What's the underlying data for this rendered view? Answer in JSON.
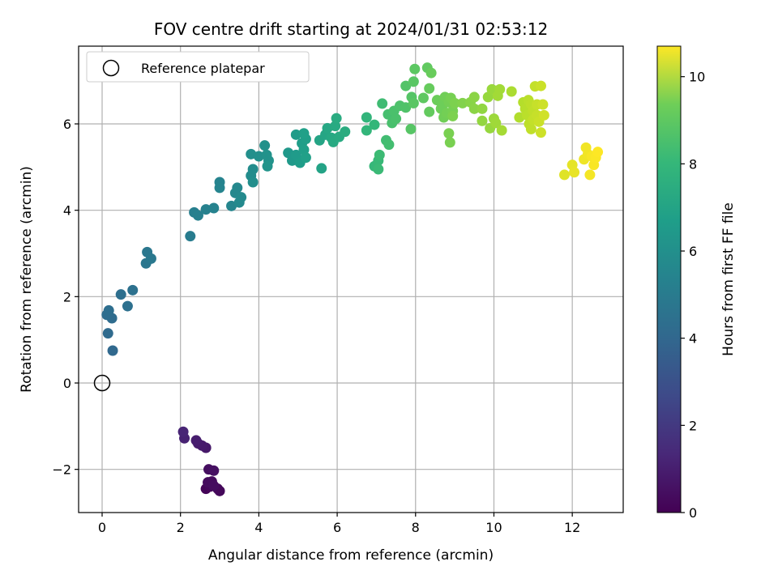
{
  "chart_data": {
    "type": "scatter",
    "title": "FOV centre drift starting at 2024/01/31 02:53:12",
    "xlabel": "Angular distance from reference (arcmin)",
    "ylabel": "Rotation from reference (arcmin)",
    "xlim": [
      -0.6,
      13.3
    ],
    "ylim": [
      -3.0,
      7.8
    ],
    "xticks": [
      0,
      2,
      4,
      6,
      8,
      10,
      12
    ],
    "yticks": [
      -2,
      0,
      2,
      4,
      6
    ],
    "grid": true,
    "legend": {
      "position": "top-left",
      "entries": [
        "Reference platepar"
      ]
    },
    "reference_point": {
      "x": 0,
      "y": 0
    },
    "colorbar": {
      "label": "Hours from first FF file",
      "colormap": "viridis",
      "range": [
        0,
        10.7
      ],
      "ticks": [
        0,
        2,
        4,
        6,
        8,
        10
      ]
    },
    "points": [
      {
        "x": 2.65,
        "y": -2.45,
        "h": 0.1
      },
      {
        "x": 2.75,
        "y": -2.4,
        "h": 0.15
      },
      {
        "x": 2.95,
        "y": -2.45,
        "h": 0.2
      },
      {
        "x": 3.0,
        "y": -2.5,
        "h": 0.2
      },
      {
        "x": 2.7,
        "y": -2.3,
        "h": 0.3
      },
      {
        "x": 2.8,
        "y": -2.28,
        "h": 0.3
      },
      {
        "x": 2.85,
        "y": -2.38,
        "h": 0.35
      },
      {
        "x": 2.72,
        "y": -2.0,
        "h": 0.4
      },
      {
        "x": 2.85,
        "y": -2.03,
        "h": 0.45
      },
      {
        "x": 2.65,
        "y": -1.5,
        "h": 0.7
      },
      {
        "x": 2.55,
        "y": -1.45,
        "h": 0.75
      },
      {
        "x": 2.45,
        "y": -1.4,
        "h": 0.8
      },
      {
        "x": 2.4,
        "y": -1.33,
        "h": 0.85
      },
      {
        "x": 2.1,
        "y": -1.28,
        "h": 1.0
      },
      {
        "x": 2.07,
        "y": -1.13,
        "h": 1.1
      },
      {
        "x": 0.27,
        "y": 0.75,
        "h": 3.6
      },
      {
        "x": 0.15,
        "y": 1.15,
        "h": 3.7
      },
      {
        "x": 0.25,
        "y": 1.5,
        "h": 3.75
      },
      {
        "x": 0.12,
        "y": 1.58,
        "h": 3.8
      },
      {
        "x": 0.17,
        "y": 1.68,
        "h": 3.85
      },
      {
        "x": 0.48,
        "y": 2.05,
        "h": 3.9
      },
      {
        "x": 0.65,
        "y": 1.78,
        "h": 3.95
      },
      {
        "x": 0.78,
        "y": 2.15,
        "h": 4.0
      },
      {
        "x": 1.12,
        "y": 2.77,
        "h": 4.2
      },
      {
        "x": 1.15,
        "y": 3.03,
        "h": 4.25
      },
      {
        "x": 1.25,
        "y": 2.88,
        "h": 4.3
      },
      {
        "x": 2.25,
        "y": 3.4,
        "h": 4.5
      },
      {
        "x": 2.35,
        "y": 3.95,
        "h": 4.6
      },
      {
        "x": 2.45,
        "y": 3.88,
        "h": 4.65
      },
      {
        "x": 2.65,
        "y": 4.02,
        "h": 4.7
      },
      {
        "x": 2.85,
        "y": 4.05,
        "h": 4.75
      },
      {
        "x": 3.0,
        "y": 4.65,
        "h": 4.8
      },
      {
        "x": 3.0,
        "y": 4.52,
        "h": 4.85
      },
      {
        "x": 3.3,
        "y": 4.1,
        "h": 4.9
      },
      {
        "x": 3.4,
        "y": 4.4,
        "h": 5.0
      },
      {
        "x": 3.45,
        "y": 4.52,
        "h": 5.0
      },
      {
        "x": 3.5,
        "y": 4.18,
        "h": 5.05
      },
      {
        "x": 3.55,
        "y": 4.3,
        "h": 5.1
      },
      {
        "x": 3.85,
        "y": 4.95,
        "h": 5.2
      },
      {
        "x": 3.8,
        "y": 4.8,
        "h": 5.2
      },
      {
        "x": 3.85,
        "y": 4.65,
        "h": 5.25
      },
      {
        "x": 3.8,
        "y": 5.3,
        "h": 5.3
      },
      {
        "x": 4.0,
        "y": 5.25,
        "h": 5.35
      },
      {
        "x": 4.15,
        "y": 5.5,
        "h": 5.4
      },
      {
        "x": 4.2,
        "y": 5.28,
        "h": 5.45
      },
      {
        "x": 4.25,
        "y": 5.15,
        "h": 5.45
      },
      {
        "x": 4.22,
        "y": 5.02,
        "h": 5.5
      },
      {
        "x": 4.75,
        "y": 5.33,
        "h": 5.7
      },
      {
        "x": 4.85,
        "y": 5.15,
        "h": 5.75
      },
      {
        "x": 4.95,
        "y": 5.28,
        "h": 5.8
      },
      {
        "x": 4.95,
        "y": 5.75,
        "h": 5.85
      },
      {
        "x": 5.05,
        "y": 5.1,
        "h": 5.9
      },
      {
        "x": 5.1,
        "y": 5.55,
        "h": 5.95
      },
      {
        "x": 5.15,
        "y": 5.4,
        "h": 6.0
      },
      {
        "x": 5.2,
        "y": 5.65,
        "h": 6.0
      },
      {
        "x": 5.15,
        "y": 5.78,
        "h": 6.05
      },
      {
        "x": 5.2,
        "y": 5.22,
        "h": 6.05
      },
      {
        "x": 5.6,
        "y": 4.97,
        "h": 6.2
      },
      {
        "x": 5.55,
        "y": 5.62,
        "h": 6.25
      },
      {
        "x": 5.7,
        "y": 5.75,
        "h": 6.3
      },
      {
        "x": 5.75,
        "y": 5.9,
        "h": 6.35
      },
      {
        "x": 5.85,
        "y": 5.68,
        "h": 6.4
      },
      {
        "x": 5.9,
        "y": 5.58,
        "h": 6.45
      },
      {
        "x": 5.95,
        "y": 5.95,
        "h": 6.5
      },
      {
        "x": 6.05,
        "y": 5.7,
        "h": 6.5
      },
      {
        "x": 5.98,
        "y": 6.13,
        "h": 6.55
      },
      {
        "x": 6.2,
        "y": 5.82,
        "h": 6.6
      },
      {
        "x": 6.75,
        "y": 6.15,
        "h": 7.0
      },
      {
        "x": 6.75,
        "y": 5.85,
        "h": 7.05
      },
      {
        "x": 6.95,
        "y": 5.98,
        "h": 7.1
      },
      {
        "x": 6.95,
        "y": 5.02,
        "h": 7.15
      },
      {
        "x": 7.05,
        "y": 5.15,
        "h": 7.2
      },
      {
        "x": 7.05,
        "y": 4.95,
        "h": 7.25
      },
      {
        "x": 7.08,
        "y": 5.28,
        "h": 7.3
      },
      {
        "x": 7.15,
        "y": 6.47,
        "h": 7.35
      },
      {
        "x": 7.25,
        "y": 5.62,
        "h": 7.4
      },
      {
        "x": 7.32,
        "y": 5.52,
        "h": 7.45
      },
      {
        "x": 7.3,
        "y": 6.22,
        "h": 7.5
      },
      {
        "x": 7.4,
        "y": 6.02,
        "h": 7.55
      },
      {
        "x": 7.45,
        "y": 6.3,
        "h": 7.6
      },
      {
        "x": 7.5,
        "y": 6.12,
        "h": 7.6
      },
      {
        "x": 7.6,
        "y": 6.42,
        "h": 7.65
      },
      {
        "x": 7.75,
        "y": 6.38,
        "h": 7.7
      },
      {
        "x": 7.75,
        "y": 6.88,
        "h": 7.75
      },
      {
        "x": 7.9,
        "y": 6.62,
        "h": 7.8
      },
      {
        "x": 7.88,
        "y": 5.88,
        "h": 7.85
      },
      {
        "x": 7.95,
        "y": 6.48,
        "h": 7.9
      },
      {
        "x": 7.95,
        "y": 6.98,
        "h": 7.9
      },
      {
        "x": 7.98,
        "y": 7.27,
        "h": 7.95
      },
      {
        "x": 8.2,
        "y": 6.6,
        "h": 8.0
      },
      {
        "x": 8.3,
        "y": 7.3,
        "h": 8.05
      },
      {
        "x": 8.35,
        "y": 6.28,
        "h": 8.1
      },
      {
        "x": 8.35,
        "y": 6.82,
        "h": 8.15
      },
      {
        "x": 8.4,
        "y": 7.18,
        "h": 8.2
      },
      {
        "x": 8.55,
        "y": 6.55,
        "h": 8.25
      },
      {
        "x": 8.65,
        "y": 6.35,
        "h": 8.3
      },
      {
        "x": 8.7,
        "y": 6.45,
        "h": 8.3
      },
      {
        "x": 8.72,
        "y": 6.15,
        "h": 8.35
      },
      {
        "x": 8.75,
        "y": 6.62,
        "h": 8.35
      },
      {
        "x": 8.8,
        "y": 6.25,
        "h": 8.4
      },
      {
        "x": 8.85,
        "y": 6.5,
        "h": 8.4
      },
      {
        "x": 8.9,
        "y": 6.6,
        "h": 8.45
      },
      {
        "x": 8.95,
        "y": 6.3,
        "h": 8.45
      },
      {
        "x": 8.85,
        "y": 5.78,
        "h": 8.5
      },
      {
        "x": 8.88,
        "y": 5.57,
        "h": 8.5
      },
      {
        "x": 8.95,
        "y": 6.18,
        "h": 8.55
      },
      {
        "x": 9.0,
        "y": 6.48,
        "h": 8.55
      },
      {
        "x": 9.2,
        "y": 6.48,
        "h": 8.65
      },
      {
        "x": 9.4,
        "y": 6.5,
        "h": 8.75
      },
      {
        "x": 9.5,
        "y": 6.35,
        "h": 8.8
      },
      {
        "x": 9.5,
        "y": 6.62,
        "h": 8.8
      },
      {
        "x": 9.7,
        "y": 6.35,
        "h": 8.9
      },
      {
        "x": 9.7,
        "y": 6.07,
        "h": 8.95
      },
      {
        "x": 9.85,
        "y": 6.62,
        "h": 9.0
      },
      {
        "x": 9.9,
        "y": 5.9,
        "h": 9.0
      },
      {
        "x": 9.95,
        "y": 6.8,
        "h": 9.05
      },
      {
        "x": 10.0,
        "y": 6.12,
        "h": 9.1
      },
      {
        "x": 10.05,
        "y": 6.02,
        "h": 9.15
      },
      {
        "x": 10.1,
        "y": 6.65,
        "h": 9.2
      },
      {
        "x": 10.15,
        "y": 6.8,
        "h": 9.2
      },
      {
        "x": 10.2,
        "y": 5.85,
        "h": 9.25
      },
      {
        "x": 10.45,
        "y": 6.75,
        "h": 9.35
      },
      {
        "x": 10.65,
        "y": 6.15,
        "h": 9.45
      },
      {
        "x": 10.75,
        "y": 6.5,
        "h": 9.5
      },
      {
        "x": 10.8,
        "y": 6.35,
        "h": 9.55
      },
      {
        "x": 10.85,
        "y": 6.2,
        "h": 9.6
      },
      {
        "x": 10.88,
        "y": 6.55,
        "h": 9.6
      },
      {
        "x": 10.9,
        "y": 6.0,
        "h": 9.65
      },
      {
        "x": 10.95,
        "y": 6.45,
        "h": 9.65
      },
      {
        "x": 10.95,
        "y": 5.88,
        "h": 9.7
      },
      {
        "x": 11.0,
        "y": 6.3,
        "h": 9.7
      },
      {
        "x": 11.0,
        "y": 6.1,
        "h": 9.75
      },
      {
        "x": 11.05,
        "y": 6.87,
        "h": 9.75
      },
      {
        "x": 11.1,
        "y": 6.45,
        "h": 9.8
      },
      {
        "x": 11.1,
        "y": 6.2,
        "h": 9.8
      },
      {
        "x": 11.15,
        "y": 6.05,
        "h": 9.85
      },
      {
        "x": 11.2,
        "y": 6.88,
        "h": 9.85
      },
      {
        "x": 11.2,
        "y": 5.8,
        "h": 9.9
      },
      {
        "x": 11.25,
        "y": 6.45,
        "h": 9.9
      },
      {
        "x": 11.28,
        "y": 6.2,
        "h": 9.95
      },
      {
        "x": 11.8,
        "y": 4.82,
        "h": 10.2
      },
      {
        "x": 12.0,
        "y": 5.05,
        "h": 10.3
      },
      {
        "x": 12.05,
        "y": 4.88,
        "h": 10.35
      },
      {
        "x": 12.3,
        "y": 5.18,
        "h": 10.45
      },
      {
        "x": 12.35,
        "y": 5.45,
        "h": 10.5
      },
      {
        "x": 12.4,
        "y": 5.3,
        "h": 10.5
      },
      {
        "x": 12.45,
        "y": 4.82,
        "h": 10.55
      },
      {
        "x": 12.5,
        "y": 5.25,
        "h": 10.6
      },
      {
        "x": 12.55,
        "y": 5.05,
        "h": 10.62
      },
      {
        "x": 12.6,
        "y": 5.22,
        "h": 10.65
      },
      {
        "x": 12.65,
        "y": 5.35,
        "h": 10.7
      }
    ]
  }
}
